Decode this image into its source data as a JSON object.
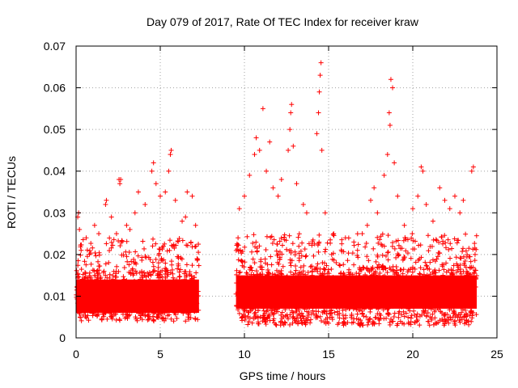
{
  "chart_data": {
    "type": "scatter",
    "title": "Day 079 of 2017, Rate Of TEC Index for receiver kraw",
    "xlabel": "GPS time / hours",
    "ylabel": "ROTI / TECUs",
    "xlim": [
      0,
      25
    ],
    "ylim": [
      0,
      0.07
    ],
    "x_ticks": [
      0,
      5,
      10,
      15,
      20,
      25
    ],
    "x_tick_labels": [
      "0",
      "5",
      "10",
      "15",
      "20",
      "25"
    ],
    "y_ticks": [
      0,
      0.01,
      0.02,
      0.03,
      0.04,
      0.05,
      0.06,
      0.07
    ],
    "y_tick_labels": [
      "0",
      "0.01",
      "0.02",
      "0.03",
      "0.04",
      "0.05",
      "0.06",
      "0.07"
    ],
    "grid": true,
    "marker": "+",
    "color": "#ff0000",
    "data_segments": [
      {
        "x_start": 0.0,
        "x_end": 7.3
      },
      {
        "x_start": 9.5,
        "x_end": 23.8
      }
    ],
    "series": [
      {
        "name": "ROTI",
        "points": [
          [
            0.1,
            0.029
          ],
          [
            0.15,
            0.03
          ],
          [
            0.2,
            0.026
          ],
          [
            0.3,
            0.021
          ],
          [
            0.6,
            0.024
          ],
          [
            1.1,
            0.027
          ],
          [
            1.35,
            0.025
          ],
          [
            1.75,
            0.032
          ],
          [
            1.8,
            0.033
          ],
          [
            2.1,
            0.029
          ],
          [
            2.4,
            0.025
          ],
          [
            2.55,
            0.038
          ],
          [
            2.6,
            0.037
          ],
          [
            2.65,
            0.038
          ],
          [
            3.0,
            0.027
          ],
          [
            3.2,
            0.026
          ],
          [
            3.5,
            0.03
          ],
          [
            3.7,
            0.035
          ],
          [
            4.1,
            0.032
          ],
          [
            4.5,
            0.04
          ],
          [
            4.6,
            0.042
          ],
          [
            4.75,
            0.037
          ],
          [
            5.0,
            0.034
          ],
          [
            5.3,
            0.035
          ],
          [
            5.5,
            0.04
          ],
          [
            5.6,
            0.044
          ],
          [
            5.65,
            0.045
          ],
          [
            5.9,
            0.033
          ],
          [
            6.3,
            0.028
          ],
          [
            6.5,
            0.029
          ],
          [
            6.6,
            0.035
          ],
          [
            6.9,
            0.034
          ],
          [
            7.1,
            0.027
          ],
          [
            9.7,
            0.031
          ],
          [
            10.0,
            0.034
          ],
          [
            10.3,
            0.039
          ],
          [
            10.6,
            0.044
          ],
          [
            10.7,
            0.048
          ],
          [
            10.9,
            0.045
          ],
          [
            11.1,
            0.055
          ],
          [
            11.3,
            0.04
          ],
          [
            11.5,
            0.047
          ],
          [
            11.7,
            0.036
          ],
          [
            12.0,
            0.034
          ],
          [
            12.2,
            0.038
          ],
          [
            12.6,
            0.045
          ],
          [
            12.7,
            0.05
          ],
          [
            12.75,
            0.054
          ],
          [
            12.8,
            0.056
          ],
          [
            12.9,
            0.046
          ],
          [
            13.1,
            0.037
          ],
          [
            13.5,
            0.032
          ],
          [
            13.7,
            0.03
          ],
          [
            14.3,
            0.049
          ],
          [
            14.4,
            0.054
          ],
          [
            14.45,
            0.059
          ],
          [
            14.5,
            0.063
          ],
          [
            14.55,
            0.066
          ],
          [
            14.6,
            0.045
          ],
          [
            14.8,
            0.03
          ],
          [
            15.3,
            0.025
          ],
          [
            16.0,
            0.024
          ],
          [
            16.5,
            0.023
          ],
          [
            17.0,
            0.025
          ],
          [
            17.3,
            0.027
          ],
          [
            17.5,
            0.033
          ],
          [
            17.7,
            0.036
          ],
          [
            17.9,
            0.03
          ],
          [
            18.3,
            0.039
          ],
          [
            18.5,
            0.044
          ],
          [
            18.6,
            0.054
          ],
          [
            18.65,
            0.051
          ],
          [
            18.7,
            0.062
          ],
          [
            18.8,
            0.06
          ],
          [
            18.9,
            0.042
          ],
          [
            19.1,
            0.034
          ],
          [
            19.5,
            0.027
          ],
          [
            20.0,
            0.031
          ],
          [
            20.3,
            0.034
          ],
          [
            20.5,
            0.041
          ],
          [
            20.6,
            0.04
          ],
          [
            20.8,
            0.032
          ],
          [
            21.2,
            0.028
          ],
          [
            21.6,
            0.036
          ],
          [
            21.9,
            0.033
          ],
          [
            22.2,
            0.031
          ],
          [
            22.5,
            0.034
          ],
          [
            22.8,
            0.03
          ],
          [
            23.0,
            0.033
          ],
          [
            23.5,
            0.04
          ],
          [
            23.6,
            0.041
          ],
          [
            23.7,
            0.02
          ]
        ],
        "baseline_band": [
          {
            "x_start": 0.0,
            "x_end": 7.3,
            "y_min": 0.004,
            "y_max": 0.016,
            "y_typical": 0.01
          },
          {
            "x_start": 9.5,
            "x_end": 23.8,
            "y_min": 0.003,
            "y_max": 0.017,
            "y_typical": 0.011
          }
        ]
      }
    ]
  }
}
